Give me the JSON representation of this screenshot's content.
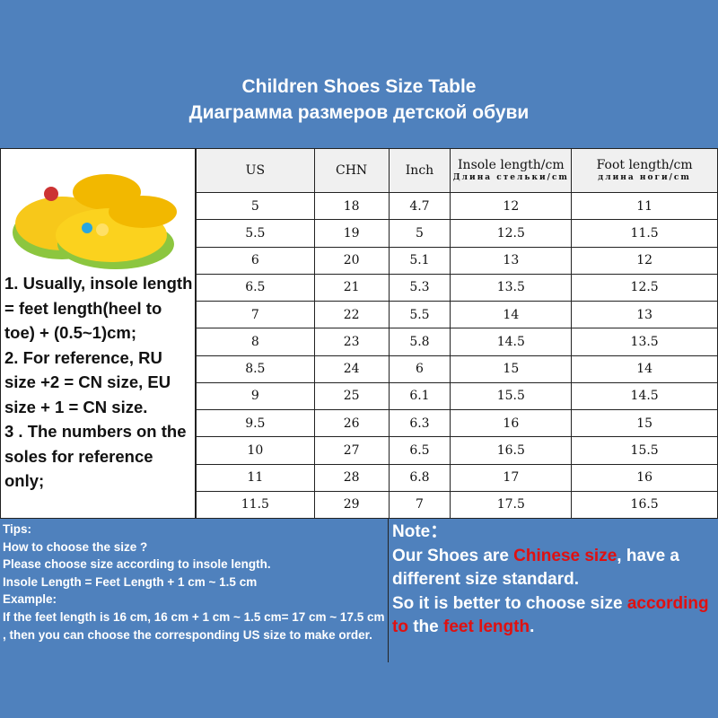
{
  "title": {
    "en": "Children Shoes Size Table",
    "ru": "Диаграмма размеров детской обуви"
  },
  "notes": [
    "1. Usually, insole length = feet length(heel to toe) + (0.5~1)cm;",
    "2. For reference, RU size +2 = CN size, EU size + 1 = CN size.",
    "3 . The numbers on the soles for reference only;"
  ],
  "table": {
    "headers": [
      {
        "en": "US",
        "ru": ""
      },
      {
        "en": "CHN",
        "ru": ""
      },
      {
        "en": "Inch",
        "ru": ""
      },
      {
        "en": "Insole length/cm",
        "ru": "Длина стельки/cm"
      },
      {
        "en": "Foot length/cm",
        "ru": "длина ноги/cm"
      }
    ],
    "rows": [
      [
        "5",
        "18",
        "4.7",
        "12",
        "11"
      ],
      [
        "5.5",
        "19",
        "5",
        "12.5",
        "11.5"
      ],
      [
        "6",
        "20",
        "5.1",
        "13",
        "12"
      ],
      [
        "6.5",
        "21",
        "5.3",
        "13.5",
        "12.5"
      ],
      [
        "7",
        "22",
        "5.5",
        "14",
        "13"
      ],
      [
        "8",
        "23",
        "5.8",
        "14.5",
        "13.5"
      ],
      [
        "8.5",
        "24",
        "6",
        "15",
        "14"
      ],
      [
        "9",
        "25",
        "6.1",
        "15.5",
        "14.5"
      ],
      [
        "9.5",
        "26",
        "6.3",
        "16",
        "15"
      ],
      [
        "10",
        "27",
        "6.5",
        "16.5",
        "15.5"
      ],
      [
        "11",
        "28",
        "6.8",
        "17",
        "16"
      ],
      [
        "11.5",
        "29",
        "7",
        "17.5",
        "16.5"
      ]
    ]
  },
  "tips": [
    "Tips:",
    "How to choose the size ?",
    "Please choose size according to insole length.",
    "Insole Length = Feet Length + 1 cm ~ 1.5 cm",
    "Example:",
    "If the feet length is 16 cm, 16 cm + 1 cm ~ 1.5 cm= 17 cm ~ 17.5 cm , then you can choose the corresponding US size to make order."
  ],
  "note": {
    "label": "Note：",
    "p1": "Our Shoes are ",
    "p2": "Chinese size",
    "p3": ", have a different size standard.",
    "p4": "So it is better to choose size ",
    "p5": "according to",
    "p6": " the ",
    "p7": "feet length",
    "p8": "."
  },
  "colors": {
    "background": "#4f81bd",
    "highlight": "#e01010",
    "header_bg": "#f0f0f0"
  },
  "image": {
    "subject": "yellow children's clogs"
  }
}
